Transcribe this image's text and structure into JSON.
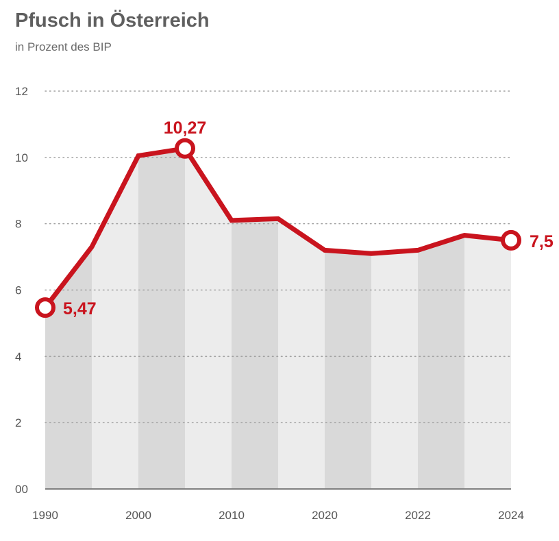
{
  "chart_data": {
    "type": "area",
    "title": "Pfusch in Österreich",
    "subtitle": "in Prozent des BIP",
    "xlabel": "",
    "ylabel": "",
    "ylim": [
      0,
      12
    ],
    "yticks": [
      0,
      2,
      4,
      6,
      8,
      10,
      12
    ],
    "ytick_labels": [
      "00",
      "2",
      "4",
      "6",
      "8",
      "10",
      "12"
    ],
    "xtick_labels": [
      "1990",
      "2000",
      "2010",
      "2020",
      "2022",
      "2024"
    ],
    "series": [
      {
        "name": "Pfusch in Prozent des BIP",
        "values": [
          5.47,
          7.3,
          10.05,
          10.27,
          8.1,
          8.15,
          7.2,
          7.1,
          7.2,
          7.65,
          7.5
        ]
      }
    ],
    "annotations": [
      {
        "index": 0,
        "label": "5,47"
      },
      {
        "index": 3,
        "label": "10,27"
      },
      {
        "index": 10,
        "label": "7,5"
      }
    ],
    "colors": {
      "line": "#c9141e",
      "band_dark": "#d9d9d9",
      "band_light": "#ececec",
      "grid": "#a0a0a0",
      "axis": "#808080"
    }
  }
}
